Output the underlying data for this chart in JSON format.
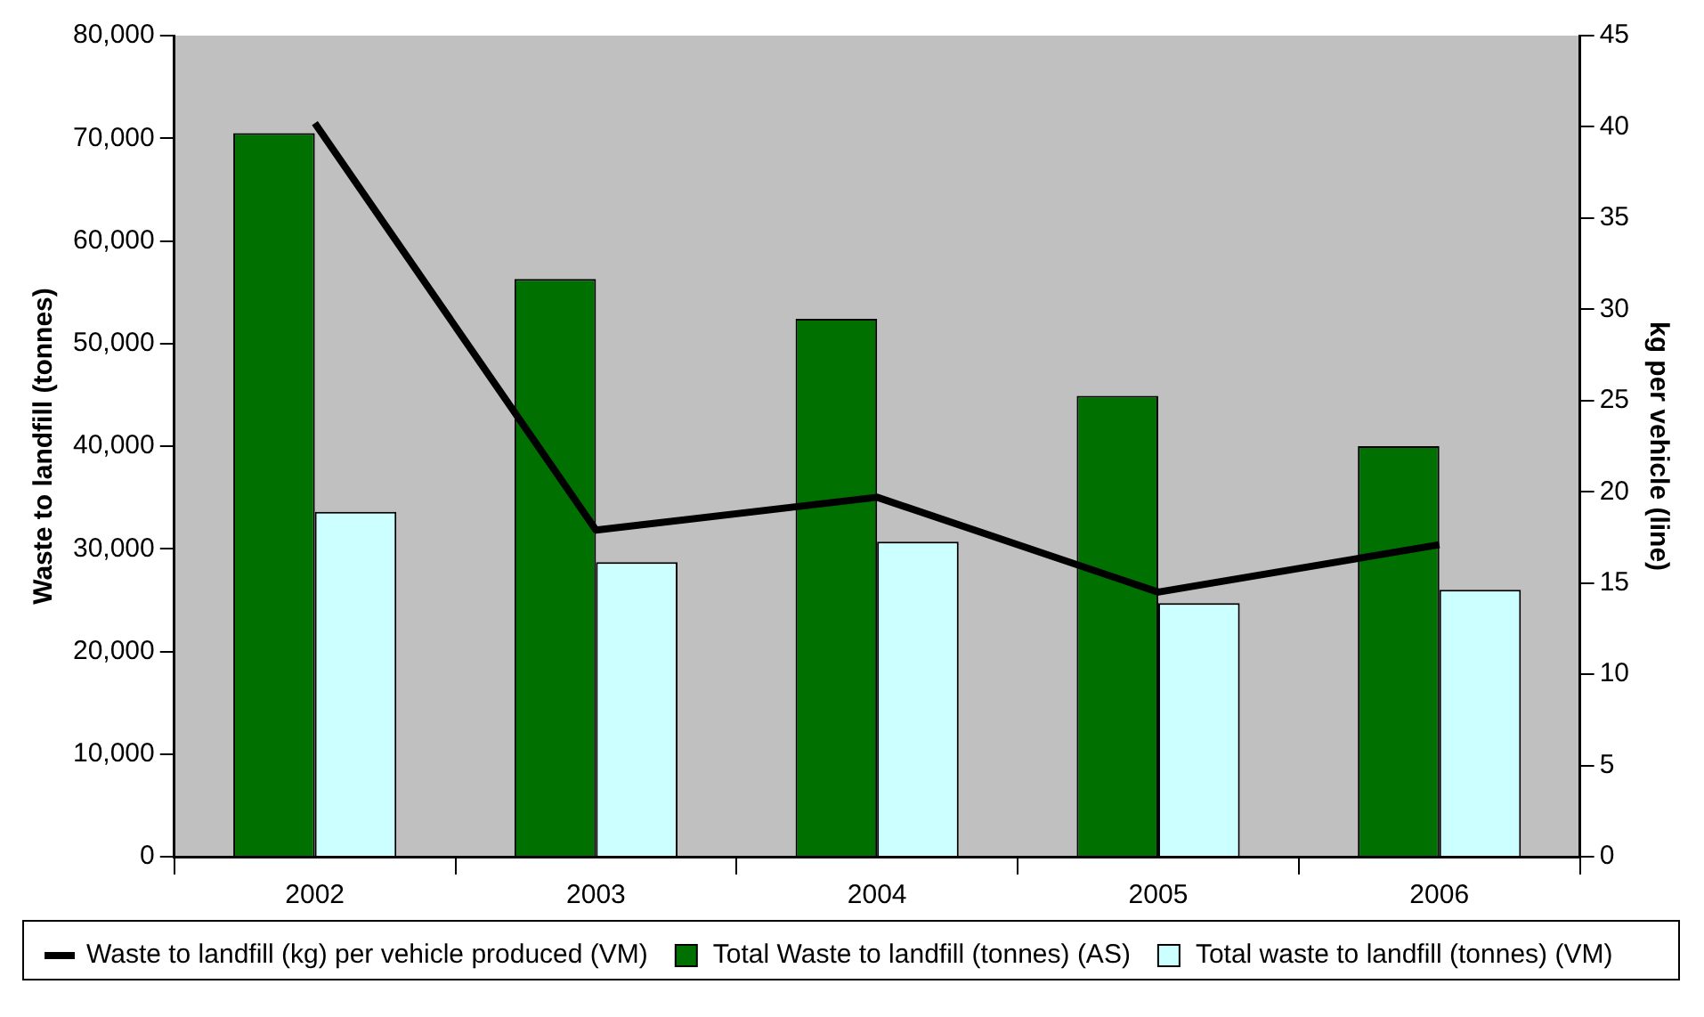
{
  "chart_data": {
    "type": "bar",
    "categories": [
      "2002",
      "2003",
      "2004",
      "2005",
      "2006"
    ],
    "ylabel": "Waste to landfill (tonnes)",
    "y2label": "kg per vehicle (line)",
    "series": [
      {
        "name": "Total Waste to landfill (tonnes) (AS)",
        "color": "#007000",
        "values": [
          70500,
          56300,
          52400,
          44900,
          40000
        ]
      },
      {
        "name": "Total waste to landfill (tonnes) (VM)",
        "color": "#ccffff",
        "values": [
          33600,
          28700,
          30700,
          24700,
          26000
        ]
      },
      {
        "name": "Waste to landfill (kg) per vehicle produced (VM)",
        "type": "line",
        "axis": "y2",
        "color": "#000000",
        "values": [
          40.2,
          17.9,
          19.7,
          14.5,
          17.1
        ]
      }
    ],
    "ylim": [
      0,
      80000
    ],
    "yticks": [
      {
        "value": 0,
        "label": "0"
      },
      {
        "value": 10000,
        "label": "10,000"
      },
      {
        "value": 20000,
        "label": "20,000"
      },
      {
        "value": 30000,
        "label": "30,000"
      },
      {
        "value": 40000,
        "label": "40,000"
      },
      {
        "value": 50000,
        "label": "50,000"
      },
      {
        "value": 60000,
        "label": "60,000"
      },
      {
        "value": 70000,
        "label": "70,000"
      },
      {
        "value": 80000,
        "label": "80,000"
      }
    ],
    "y2lim": [
      0,
      45
    ],
    "y2ticks": [
      0,
      5,
      10,
      15,
      20,
      25,
      30,
      35,
      40,
      45
    ],
    "grid": false,
    "legend": "bottom",
    "marker": "none",
    "line_style": "solid"
  }
}
